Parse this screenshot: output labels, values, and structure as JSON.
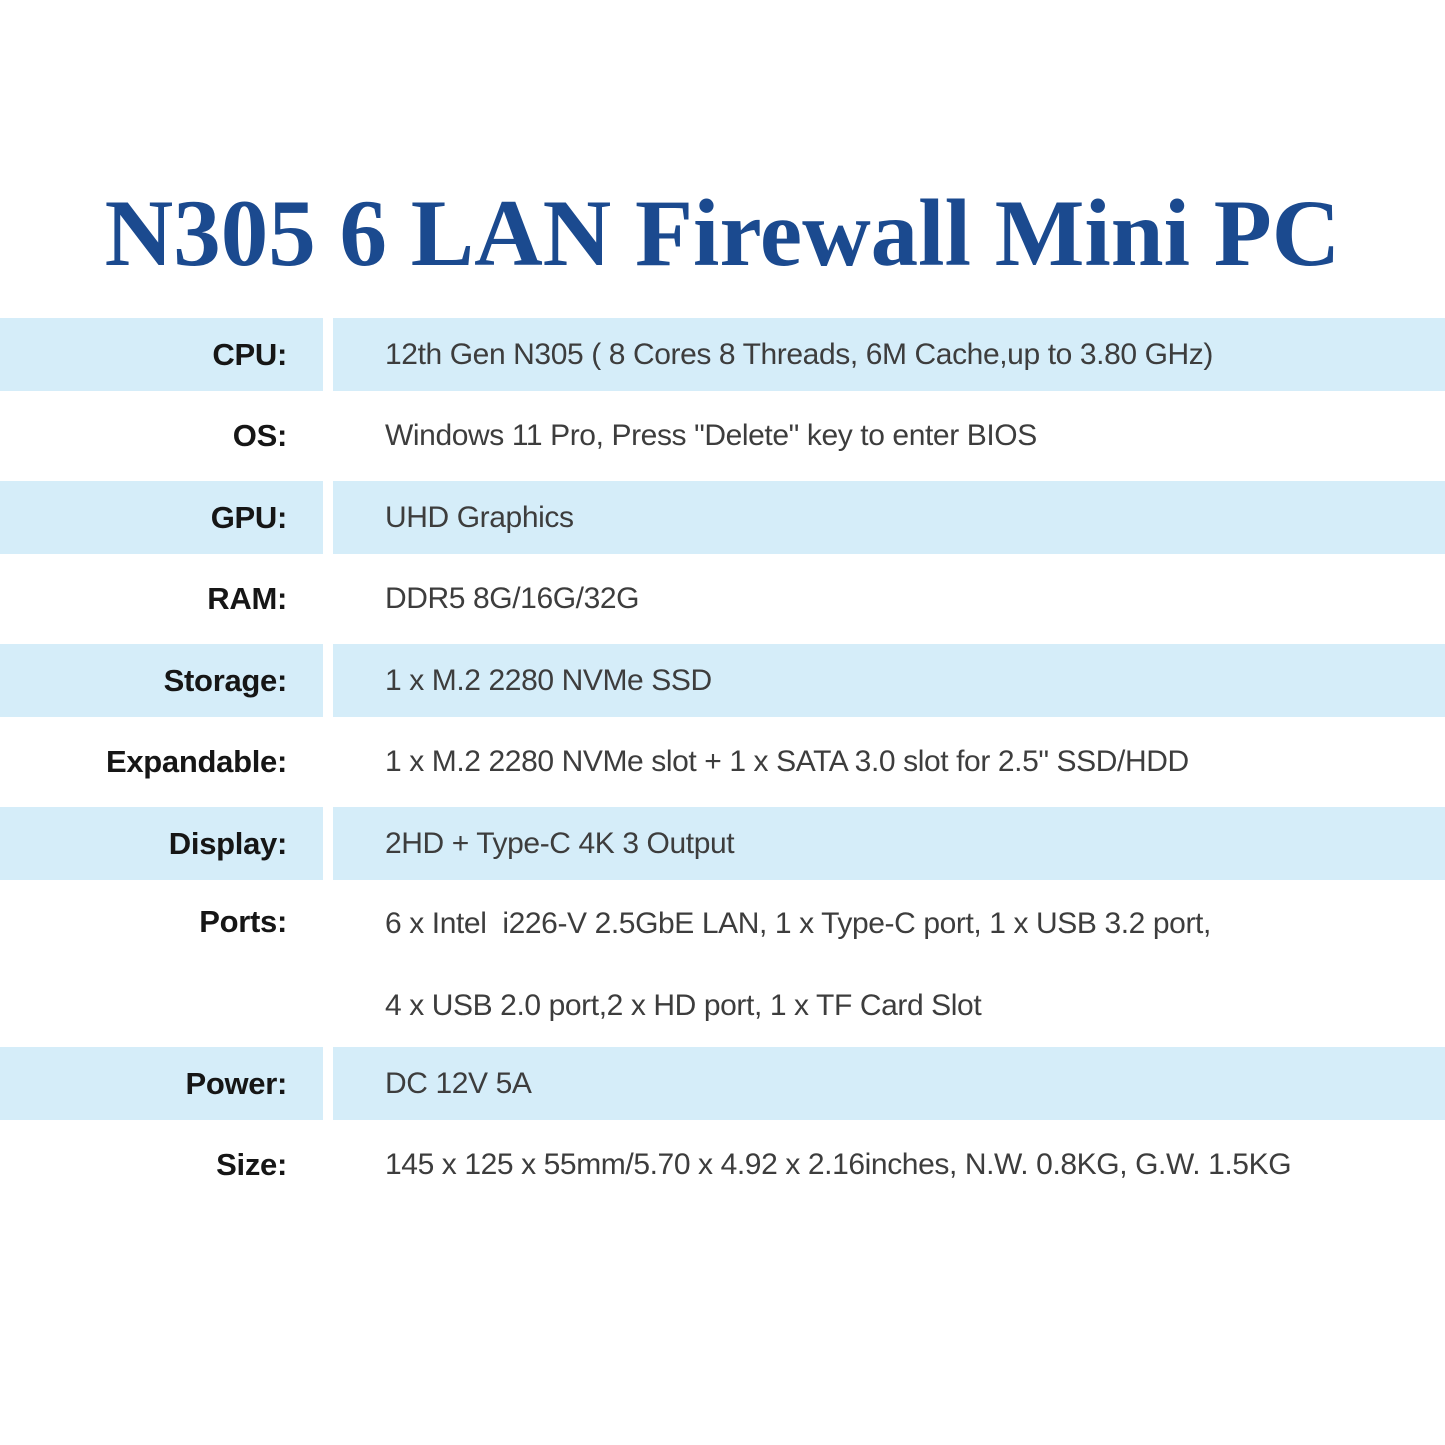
{
  "title": "N305 6 LAN Firewall Mini PC",
  "colors": {
    "title": "#1b4a8f",
    "row_highlight": "#d5edf9",
    "label_text": "#161616",
    "value_text": "#3d3d3d",
    "background": "#ffffff"
  },
  "spec_table": {
    "rows": [
      {
        "label": "CPU:",
        "value": "12th Gen N305 ( 8 Cores 8 Threads, 6M Cache,up to 3.80 GHz)",
        "highlight": true
      },
      {
        "label": "OS:",
        "value": "Windows 11 Pro, Press \"Delete\" key to enter BIOS",
        "highlight": false
      },
      {
        "label": "GPU:",
        "value": "UHD Graphics",
        "highlight": true
      },
      {
        "label": "RAM:",
        "value": "DDR5 8G/16G/32G",
        "highlight": false
      },
      {
        "label": "Storage:",
        "value": "1 x M.2 2280 NVMe SSD",
        "highlight": true
      },
      {
        "label": "Expandable:",
        "value": "1 x M.2 2280 NVMe slot + 1 x SATA 3.0 slot for 2.5\" SSD/HDD",
        "highlight": false
      },
      {
        "label": "Display:",
        "value": "2HD + Type-C 4K 3 Output",
        "highlight": true
      },
      {
        "label": "Ports:",
        "value_lines": [
          "6 x Intel  i226-V 2.5GbE LAN, 1 x Type-C port, 1 x USB 3.2 port,",
          "4 x USB 2.0 port,2 x HD port, 1 x TF Card Slot"
        ],
        "highlight": false
      },
      {
        "label": "Power:",
        "value": "DC 12V 5A",
        "highlight": true
      },
      {
        "label": "Size:",
        "value": "145 x 125 x 55mm/5.70 x 4.92 x 2.16inches, N.W. 0.8KG, G.W. 1.5KG",
        "highlight": false
      }
    ]
  }
}
